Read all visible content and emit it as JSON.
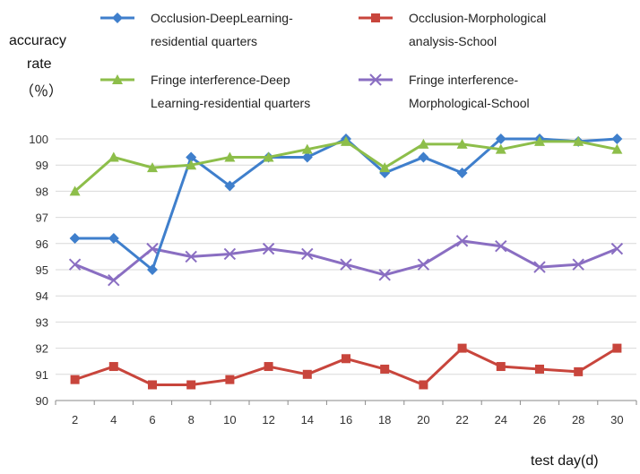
{
  "chart_data": {
    "type": "line",
    "title": "",
    "ylabel": [
      "accuracy",
      "rate",
      "（％）"
    ],
    "xlabel": "test day(d)",
    "x": [
      2,
      4,
      6,
      8,
      10,
      12,
      14,
      16,
      18,
      20,
      22,
      24,
      26,
      28,
      30
    ],
    "ylim": [
      90,
      100
    ],
    "yticks": [
      90,
      91,
      92,
      93,
      94,
      95,
      96,
      97,
      98,
      99,
      100
    ],
    "grid": true,
    "legend_position": "top",
    "series": [
      {
        "name_lines": [
          "Occlusion-DeepLearning-",
          "residential quarters"
        ],
        "color": "#3f7fcc",
        "marker": "diamond",
        "values": [
          96.2,
          96.2,
          95.0,
          99.3,
          98.2,
          99.3,
          99.3,
          100.0,
          98.7,
          99.3,
          98.7,
          100.0,
          100.0,
          99.9,
          100.0
        ]
      },
      {
        "name_lines": [
          "Occlusion-Morphological",
          "analysis-School"
        ],
        "color": "#c8453c",
        "marker": "square",
        "values": [
          90.8,
          91.3,
          90.6,
          90.6,
          90.8,
          91.3,
          91.0,
          91.6,
          91.2,
          90.6,
          92.0,
          91.3,
          91.2,
          91.1,
          92.0
        ]
      },
      {
        "name_lines": [
          "Fringe interference-Deep",
          "Learning-residential quarters"
        ],
        "color": "#8dbe4a",
        "marker": "triangle",
        "values": [
          98.0,
          99.3,
          98.9,
          99.0,
          99.3,
          99.3,
          99.6,
          99.9,
          98.9,
          99.8,
          99.8,
          99.6,
          99.9,
          99.9,
          99.6
        ]
      },
      {
        "name_lines": [
          "Fringe interference-",
          "Morphological-School"
        ],
        "color": "#8a6ec2",
        "marker": "x",
        "values": [
          95.2,
          94.6,
          95.8,
          95.5,
          95.6,
          95.8,
          95.6,
          95.2,
          94.8,
          95.2,
          96.1,
          95.9,
          95.1,
          95.2,
          95.8
        ]
      }
    ]
  }
}
